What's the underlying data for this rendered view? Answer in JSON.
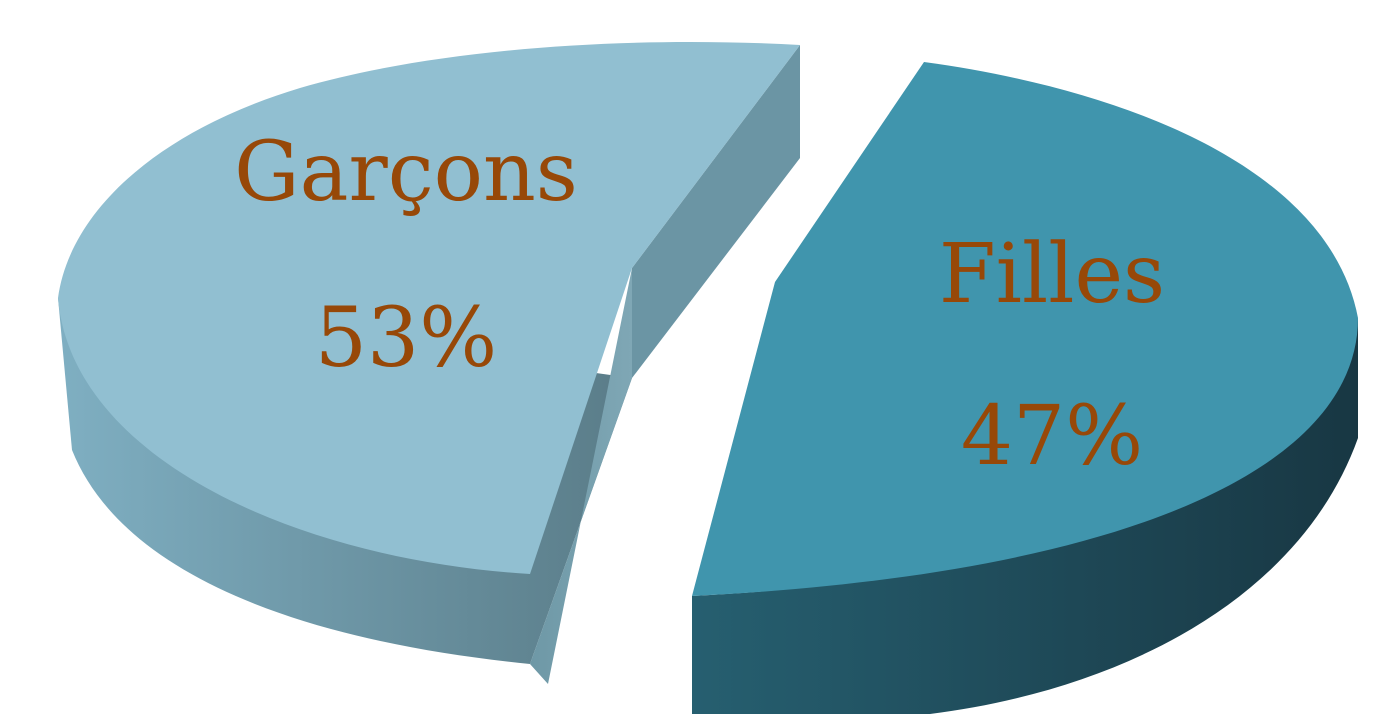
{
  "chart_data": {
    "type": "pie",
    "title": "",
    "style": "3d-exploded",
    "categories": [
      "Garçons",
      "Filles"
    ],
    "values": [
      53,
      47
    ],
    "value_labels": [
      "53%",
      "47%"
    ],
    "colors": {
      "Garçons": "#91BFD1",
      "Filles": "#4095AD"
    },
    "label_color": "#974808",
    "legend": "none"
  }
}
